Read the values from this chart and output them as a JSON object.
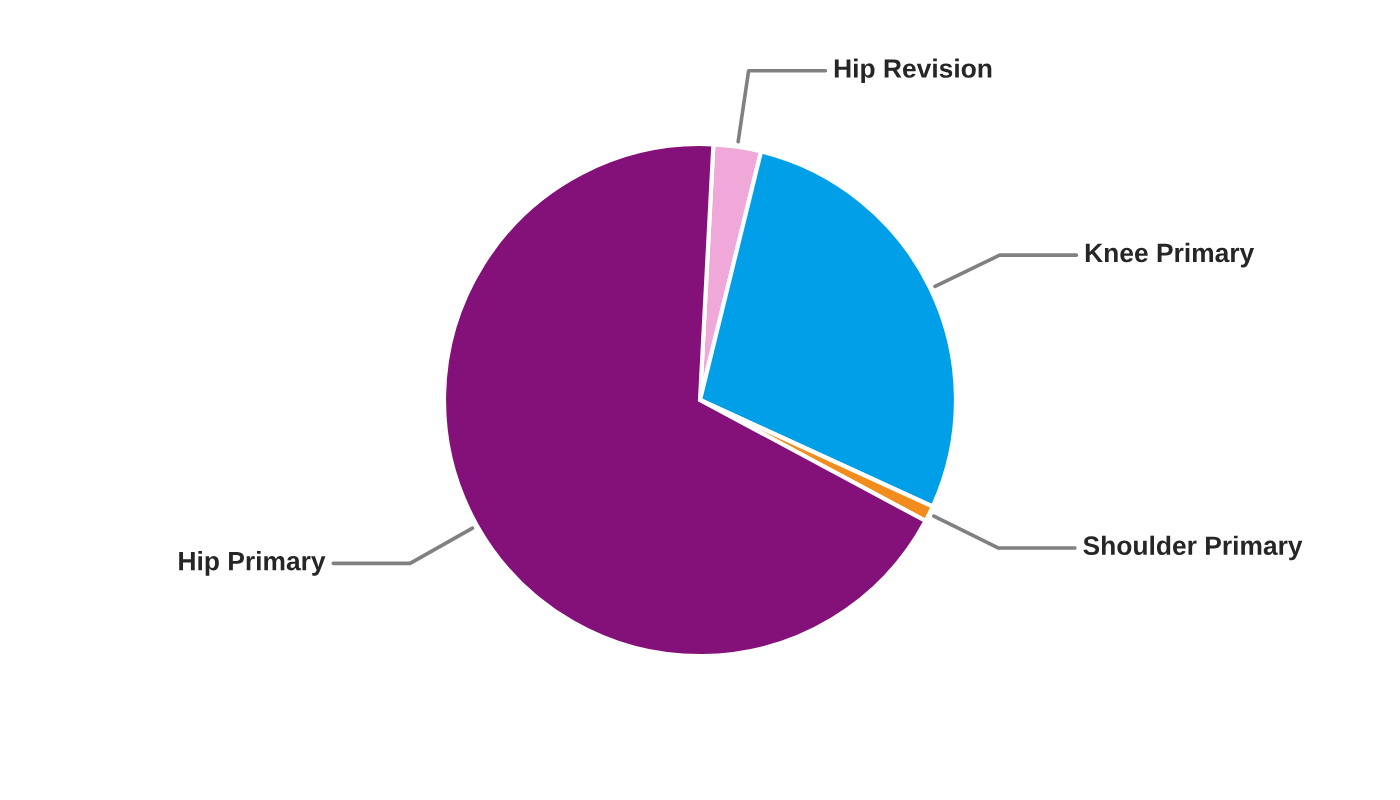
{
  "chart_data": {
    "type": "pie",
    "categories": [
      "Hip Revision",
      "Knee Primary",
      "Shoulder Primary",
      "Hip Primary"
    ],
    "values": [
      3,
      28,
      1,
      68
    ],
    "colors": [
      "#f0a8d8",
      "#009fe8",
      "#f28c1c",
      "#84107a"
    ]
  }
}
